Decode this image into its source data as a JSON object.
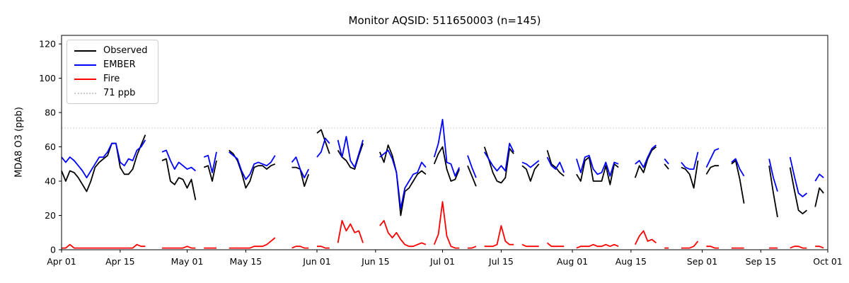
{
  "chart_data": {
    "type": "line",
    "title": "Monitor AQSID: 511650003 (n=145)",
    "ylabel": "MDA8 O3 (ppb)",
    "ylim": [
      0,
      125
    ],
    "yticks": [
      0,
      20,
      40,
      60,
      80,
      100,
      120
    ],
    "x_axis_days_total": 183,
    "xticks": [
      {
        "day": 0,
        "label": "Apr 01"
      },
      {
        "day": 14,
        "label": "Apr 15"
      },
      {
        "day": 30,
        "label": "May 01"
      },
      {
        "day": 44,
        "label": "May 15"
      },
      {
        "day": 61,
        "label": "Jun 01"
      },
      {
        "day": 75,
        "label": "Jun 15"
      },
      {
        "day": 91,
        "label": "Jul 01"
      },
      {
        "day": 105,
        "label": "Jul 15"
      },
      {
        "day": 122,
        "label": "Aug 01"
      },
      {
        "day": 136,
        "label": "Aug 15"
      },
      {
        "day": 153,
        "label": "Sep 01"
      },
      {
        "day": 167,
        "label": "Sep 15"
      },
      {
        "day": 183,
        "label": "Oct 01"
      }
    ],
    "threshold": {
      "value": 71,
      "label": "71 ppb",
      "color": "#d3d3d3"
    },
    "legend": [
      {
        "label": "Observed",
        "color": "#000000",
        "style": "solid"
      },
      {
        "label": "EMBER",
        "color": "#0000ff",
        "style": "solid"
      },
      {
        "label": "Fire",
        "color": "#ff0000",
        "style": "solid"
      },
      {
        "label": "71 ppb",
        "color": "#c9c9c9",
        "style": "dotted"
      }
    ],
    "grid": false,
    "legend_position": "upper-left",
    "series": [
      {
        "name": "Observed",
        "color": "#000000",
        "segments": [
          {
            "start_day": 0,
            "values": [
              46,
              40,
              46,
              45,
              42,
              38,
              34,
              40,
              48,
              51,
              53,
              55,
              62,
              62,
              48,
              44,
              44,
              47,
              55,
              61,
              67
            ]
          },
          {
            "start_day": 24,
            "values": [
              52,
              53,
              40,
              38,
              42,
              41,
              36,
              41,
              29
            ]
          },
          {
            "start_day": 34,
            "values": [
              48,
              49,
              40,
              52
            ]
          },
          {
            "start_day": 40,
            "values": [
              58,
              56,
              52,
              45,
              36,
              40,
              48,
              49,
              49,
              47,
              49,
              50
            ]
          },
          {
            "start_day": 55,
            "values": [
              48,
              48,
              47,
              37,
              44
            ]
          },
          {
            "start_day": 61,
            "values": [
              68,
              70,
              63,
              56
            ]
          },
          {
            "start_day": 66,
            "values": [
              58,
              54,
              52,
              48,
              47,
              55,
              62
            ]
          },
          {
            "start_day": 76,
            "values": [
              57,
              51,
              61,
              55,
              45,
              20,
              34,
              36,
              40,
              44,
              46,
              44
            ]
          },
          {
            "start_day": 89,
            "values": [
              50,
              56,
              60,
              47,
              40,
              41,
              47
            ]
          },
          {
            "start_day": 97,
            "values": [
              49,
              43,
              37
            ]
          },
          {
            "start_day": 101,
            "values": [
              60,
              53,
              45,
              40,
              39,
              42,
              59,
              56
            ]
          },
          {
            "start_day": 110,
            "values": [
              49,
              47,
              40,
              47,
              50
            ]
          },
          {
            "start_day": 116,
            "values": [
              58,
              50,
              48,
              45,
              43
            ]
          },
          {
            "start_day": 123,
            "values": [
              44,
              40,
              52,
              54,
              40,
              40,
              40,
              49,
              38,
              50,
              48
            ]
          },
          {
            "start_day": 137,
            "values": [
              42,
              49,
              45,
              53,
              58,
              60
            ]
          },
          {
            "start_day": 144,
            "values": [
              50,
              47
            ]
          },
          {
            "start_day": 148,
            "values": [
              48,
              47,
              44,
              36,
              52
            ]
          },
          {
            "start_day": 154,
            "values": [
              44,
              48,
              49,
              49
            ]
          },
          {
            "start_day": 160,
            "values": [
              50,
              52,
              41,
              27
            ]
          },
          {
            "start_day": 169,
            "values": [
              49,
              33,
              19
            ]
          },
          {
            "start_day": 174,
            "values": [
              48,
              35,
              23,
              21,
              23
            ]
          },
          {
            "start_day": 180,
            "values": [
              25,
              36,
              33
            ]
          }
        ]
      },
      {
        "name": "EMBER",
        "color": "#0000ff",
        "segments": [
          {
            "start_day": 0,
            "values": [
              54,
              51,
              54,
              52,
              49,
              46,
              42,
              46,
              50,
              54,
              54,
              57,
              62,
              62,
              51,
              49,
              53,
              52,
              58,
              60,
              64
            ]
          },
          {
            "start_day": 24,
            "values": [
              57,
              58,
              52,
              47,
              51,
              49,
              47,
              48,
              46
            ]
          },
          {
            "start_day": 34,
            "values": [
              54,
              55,
              45,
              57
            ]
          },
          {
            "start_day": 40,
            "values": [
              57,
              55,
              53,
              46,
              41,
              44,
              50,
              51,
              50,
              49,
              51,
              55
            ]
          },
          {
            "start_day": 55,
            "values": [
              51,
              54,
              47,
              42,
              47
            ]
          },
          {
            "start_day": 61,
            "values": [
              54,
              57,
              65,
              62
            ]
          },
          {
            "start_day": 66,
            "values": [
              64,
              54,
              66,
              52,
              48,
              56,
              64
            ]
          },
          {
            "start_day": 76,
            "values": [
              54,
              56,
              58,
              53,
              45,
              24,
              36,
              40,
              44,
              45,
              51,
              48
            ]
          },
          {
            "start_day": 89,
            "values": [
              54,
              62,
              76,
              51,
              50,
              43,
              48
            ]
          },
          {
            "start_day": 97,
            "values": [
              55,
              48,
              42
            ]
          },
          {
            "start_day": 101,
            "values": [
              57,
              53,
              49,
              46,
              49,
              46,
              62,
              57
            ]
          },
          {
            "start_day": 110,
            "values": [
              51,
              50,
              48,
              50,
              52
            ]
          },
          {
            "start_day": 116,
            "values": [
              54,
              49,
              47,
              51,
              45
            ]
          },
          {
            "start_day": 123,
            "values": [
              53,
              45,
              54,
              55,
              47,
              44,
              45,
              51,
              43,
              51,
              50
            ]
          },
          {
            "start_day": 137,
            "values": [
              50,
              52,
              48,
              54,
              59,
              61
            ]
          },
          {
            "start_day": 144,
            "values": [
              53,
              50
            ]
          },
          {
            "start_day": 148,
            "values": [
              51,
              48,
              47,
              47,
              57
            ]
          },
          {
            "start_day": 154,
            "values": [
              48,
              53,
              58,
              59
            ]
          },
          {
            "start_day": 160,
            "values": [
              51,
              53,
              47,
              43
            ]
          },
          {
            "start_day": 169,
            "values": [
              53,
              42,
              34
            ]
          },
          {
            "start_day": 174,
            "values": [
              54,
              43,
              33,
              31,
              33
            ]
          },
          {
            "start_day": 180,
            "values": [
              40,
              44,
              42
            ]
          }
        ]
      },
      {
        "name": "Fire",
        "color": "#ff0000",
        "segments": [
          {
            "start_day": 0,
            "values": [
              1,
              1,
              3,
              1,
              1,
              1,
              1,
              1,
              1,
              1,
              1,
              1,
              1,
              1,
              1,
              1,
              1,
              1,
              3,
              2,
              2
            ]
          },
          {
            "start_day": 24,
            "values": [
              1,
              1,
              1,
              1,
              1,
              1,
              2,
              1,
              1
            ]
          },
          {
            "start_day": 34,
            "values": [
              1,
              1,
              1,
              1
            ]
          },
          {
            "start_day": 40,
            "values": [
              1,
              1,
              1,
              1,
              1,
              1,
              2,
              2,
              2,
              3,
              5,
              7
            ]
          },
          {
            "start_day": 55,
            "values": [
              1,
              2,
              2,
              1,
              1
            ]
          },
          {
            "start_day": 61,
            "values": [
              2,
              2,
              1,
              1
            ]
          },
          {
            "start_day": 66,
            "values": [
              4,
              17,
              11,
              15,
              10,
              11,
              4
            ]
          },
          {
            "start_day": 76,
            "values": [
              14,
              17,
              10,
              7,
              10,
              6,
              3,
              2,
              2,
              3,
              4,
              3
            ]
          },
          {
            "start_day": 89,
            "values": [
              3,
              9,
              28,
              8,
              2,
              1,
              1
            ]
          },
          {
            "start_day": 97,
            "values": [
              1,
              1,
              2
            ]
          },
          {
            "start_day": 101,
            "values": [
              2,
              2,
              2,
              3,
              14,
              5,
              3,
              3
            ]
          },
          {
            "start_day": 110,
            "values": [
              3,
              2,
              2,
              2,
              2
            ]
          },
          {
            "start_day": 116,
            "values": [
              4,
              2,
              2,
              2,
              2
            ]
          },
          {
            "start_day": 123,
            "values": [
              1,
              2,
              2,
              2,
              3,
              2,
              2,
              3,
              2,
              3,
              2
            ]
          },
          {
            "start_day": 137,
            "values": [
              3,
              8,
              11,
              5,
              6,
              4
            ]
          },
          {
            "start_day": 144,
            "values": [
              1,
              1
            ]
          },
          {
            "start_day": 148,
            "values": [
              1,
              1,
              1,
              2,
              5
            ]
          },
          {
            "start_day": 154,
            "values": [
              2,
              2,
              1,
              1
            ]
          },
          {
            "start_day": 160,
            "values": [
              1,
              1,
              1,
              1
            ]
          },
          {
            "start_day": 169,
            "values": [
              1,
              1,
              1
            ]
          },
          {
            "start_day": 174,
            "values": [
              1,
              2,
              2,
              1,
              1
            ]
          },
          {
            "start_day": 180,
            "values": [
              2,
              2,
              1
            ]
          }
        ]
      }
    ]
  }
}
